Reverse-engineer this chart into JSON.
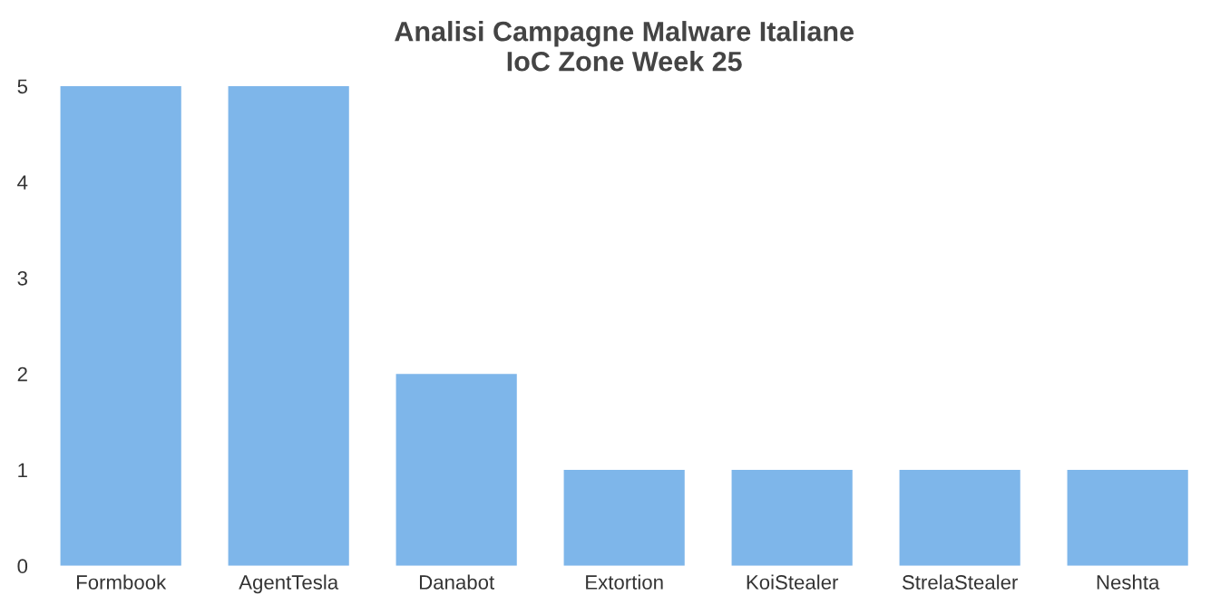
{
  "chart_data": {
    "type": "bar",
    "title": "Analisi Campagne Malware Italiane\nIoC Zone Week 25",
    "categories": [
      "Formbook",
      "AgentTesla",
      "Danabot",
      "Extortion",
      "KoiStealer",
      "StrelaStealer",
      "Neshta"
    ],
    "values": [
      5,
      5,
      2,
      1,
      1,
      1,
      1
    ],
    "color": "#7eb6ea",
    "ylim": [
      0,
      5
    ],
    "yticks": [
      0,
      1,
      2,
      3,
      4,
      5
    ],
    "grid": false
  }
}
